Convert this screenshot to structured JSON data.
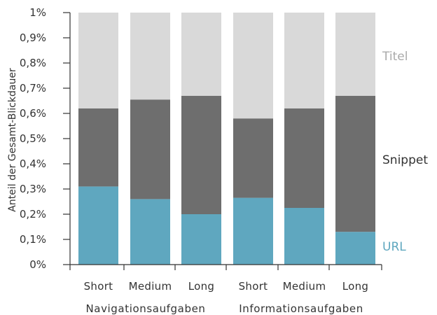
{
  "chart_data": {
    "type": "bar",
    "stacked": true,
    "title": "",
    "ylabel": "Anteil der Gesamt-Blickdauer",
    "ylim": [
      0,
      1
    ],
    "yticks": [
      "0%",
      "0,1%",
      "0,2%",
      "0,3%",
      "0,4%",
      "0,5%",
      "0,6%",
      "0,7%",
      "0,8%",
      "0,9%",
      "1%"
    ],
    "categories": [
      "Short",
      "Medium",
      "Long",
      "Short",
      "Medium",
      "Long"
    ],
    "groups": [
      {
        "label": "Navigationsaufgaben",
        "categories": [
          "Short",
          "Medium",
          "Long"
        ]
      },
      {
        "label": "Informationsaufgaben",
        "categories": [
          "Short",
          "Medium",
          "Long"
        ]
      }
    ],
    "series": [
      {
        "name": "URL",
        "color": "#5fa7bf",
        "values": [
          0.31,
          0.26,
          0.2,
          0.265,
          0.225,
          0.13
        ]
      },
      {
        "name": "Snippet",
        "color": "#6e6e6e",
        "values": [
          0.31,
          0.395,
          0.47,
          0.315,
          0.395,
          0.54
        ]
      },
      {
        "name": "Titel",
        "color": "#d9d9d9",
        "values": [
          0.38,
          0.345,
          0.33,
          0.42,
          0.38,
          0.33
        ]
      }
    ],
    "grid": false,
    "legend_position": "right"
  }
}
